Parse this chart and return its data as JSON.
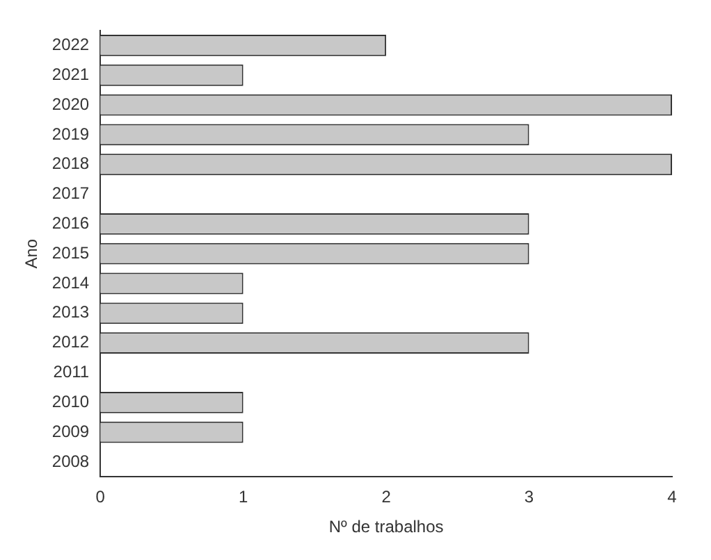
{
  "chart_data": {
    "type": "bar",
    "orientation": "horizontal",
    "xlabel": "Nº de trabalhos",
    "ylabel": "Ano",
    "categories": [
      "2022",
      "2021",
      "2020",
      "2019",
      "2018",
      "2017",
      "2016",
      "2015",
      "2014",
      "2013",
      "2012",
      "2011",
      "2010",
      "2009",
      "2008"
    ],
    "values": [
      2,
      1,
      4,
      3,
      4,
      0,
      3,
      3,
      1,
      1,
      3,
      0,
      1,
      1,
      0
    ],
    "color": "#c8c8c8",
    "xlim": [
      0,
      4
    ],
    "xticks": [
      0,
      1,
      2,
      3,
      4
    ],
    "grid": false,
    "legend": false
  }
}
